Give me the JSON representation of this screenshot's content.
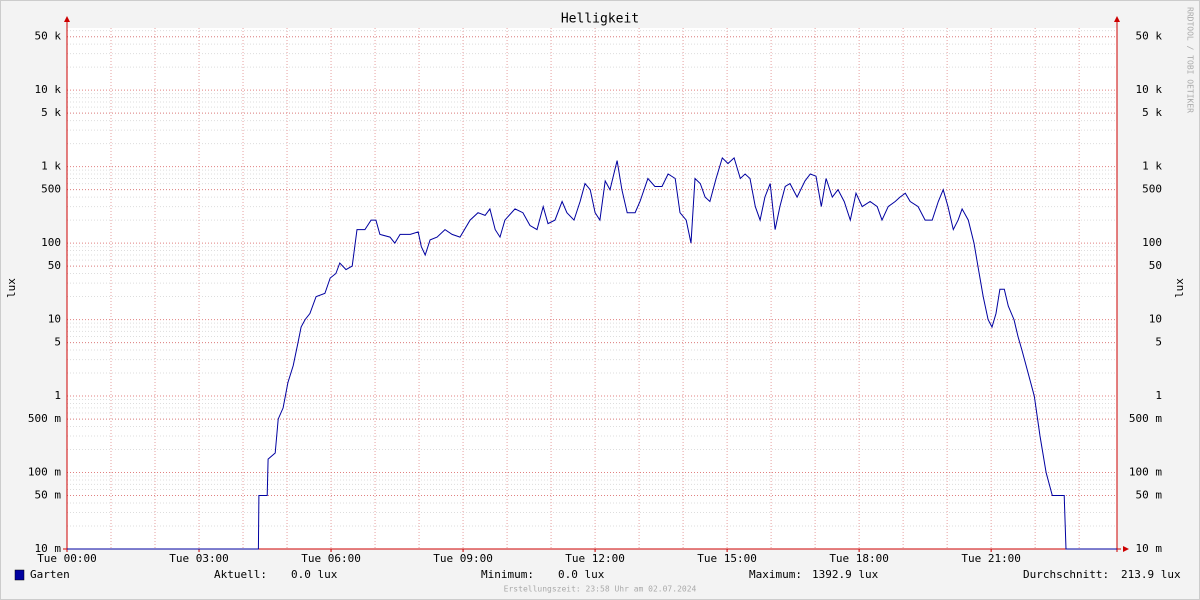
{
  "chart_data": {
    "type": "line",
    "title": "Helligkeit",
    "y_label": "lux",
    "log_y": true,
    "grid": true,
    "xlim": [
      0,
      23.86
    ],
    "ylim": [
      0.01,
      65000
    ],
    "xticks": [
      {
        "value": 0,
        "label": "Tue 00:00"
      },
      {
        "value": 3,
        "label": "Tue 03:00"
      },
      {
        "value": 6,
        "label": "Tue 06:00"
      },
      {
        "value": 9,
        "label": "Tue 09:00"
      },
      {
        "value": 12,
        "label": "Tue 12:00"
      },
      {
        "value": 15,
        "label": "Tue 15:00"
      },
      {
        "value": 18,
        "label": "Tue 18:00"
      },
      {
        "value": 21,
        "label": "Tue 21:00"
      }
    ],
    "yticks": [
      {
        "value": 0.01,
        "label": "10 m"
      },
      {
        "value": 0.05,
        "label": "50 m"
      },
      {
        "value": 0.1,
        "label": "100 m"
      },
      {
        "value": 0.5,
        "label": "500 m"
      },
      1,
      5,
      10,
      50,
      100,
      500,
      {
        "value": 1000,
        "label": "1 k"
      },
      {
        "value": 5000,
        "label": "5 k"
      },
      {
        "value": 10000,
        "label": "10 k"
      },
      {
        "value": 50000,
        "label": "50 k"
      }
    ],
    "x": [
      0,
      4.35,
      4.36,
      4.55,
      4.57,
      4.73,
      4.8,
      4.91,
      5.02,
      5.14,
      5.25,
      5.32,
      5.41,
      5.52,
      5.66,
      5.86,
      5.98,
      6.11,
      6.2,
      6.34,
      6.48,
      6.59,
      6.77,
      6.91,
      7.02,
      7.11,
      7.34,
      7.45,
      7.57,
      7.8,
      7.98,
      8.05,
      8.14,
      8.25,
      8.41,
      8.59,
      8.75,
      8.93,
      9.16,
      9.34,
      9.5,
      9.61,
      9.73,
      9.84,
      9.95,
      10.18,
      10.36,
      10.52,
      10.68,
      10.82,
      10.93,
      11.09,
      11.25,
      11.36,
      11.52,
      11.66,
      11.77,
      11.89,
      12,
      12.11,
      12.23,
      12.34,
      12.5,
      12.61,
      12.73,
      12.91,
      13.02,
      13.2,
      13.36,
      13.52,
      13.66,
      13.82,
      13.93,
      14.07,
      14.18,
      14.27,
      14.39,
      14.5,
      14.61,
      14.75,
      14.89,
      15.02,
      15.16,
      15.3,
      15.41,
      15.52,
      15.64,
      15.75,
      15.86,
      15.98,
      16.09,
      16.2,
      16.32,
      16.43,
      16.59,
      16.77,
      16.89,
      17.02,
      17.14,
      17.25,
      17.39,
      17.52,
      17.66,
      17.8,
      17.93,
      18.07,
      18.25,
      18.41,
      18.52,
      18.66,
      18.82,
      18.93,
      19.05,
      19.16,
      19.34,
      19.5,
      19.66,
      19.8,
      19.91,
      20.02,
      20.14,
      20.25,
      20.34,
      20.48,
      20.61,
      20.7,
      20.82,
      20.93,
      21.02,
      21.11,
      21.2,
      21.3,
      21.39,
      21.52,
      21.61,
      21.7,
      21.84,
      21.98,
      22.11,
      22.25,
      22.39,
      22.57,
      22.66,
      22.7,
      23.86
    ],
    "series": [
      {
        "name": "Garten",
        "color": "#0000a0",
        "values": [
          0,
          0,
          0.05,
          0.05,
          0.15,
          0.18,
          0.5,
          0.7,
          1.5,
          2.5,
          5,
          8,
          10,
          12,
          20,
          22,
          35,
          40,
          55,
          45,
          50,
          150,
          150,
          200,
          200,
          130,
          120,
          100,
          130,
          130,
          140,
          90,
          70,
          110,
          120,
          150,
          130,
          120,
          200,
          250,
          230,
          280,
          150,
          120,
          200,
          280,
          250,
          170,
          150,
          300,
          180,
          200,
          350,
          250,
          200,
          350,
          600,
          500,
          250,
          200,
          650,
          500,
          1200,
          500,
          250,
          250,
          350,
          700,
          550,
          550,
          800,
          700,
          250,
          200,
          100,
          700,
          600,
          400,
          350,
          700,
          1300,
          1100,
          1300,
          700,
          800,
          700,
          300,
          200,
          400,
          600,
          150,
          300,
          550,
          600,
          400,
          650,
          800,
          750,
          300,
          700,
          400,
          500,
          350,
          200,
          450,
          300,
          350,
          300,
          200,
          300,
          350,
          400,
          450,
          350,
          300,
          200,
          200,
          350,
          500,
          300,
          150,
          200,
          280,
          200,
          100,
          50,
          20,
          10,
          8,
          12,
          25,
          25,
          15,
          10,
          6,
          4,
          2,
          1,
          0.3,
          0.1,
          0.05,
          0.05,
          0.05,
          0,
          0
        ]
      }
    ],
    "stats": [
      {
        "label": "Aktuell:",
        "value": "0.0 lux"
      },
      {
        "label": "Minimum:",
        "value": "0.0 lux"
      },
      {
        "label": "Maximum:",
        "value": "1392.9 lux"
      },
      {
        "label": "Durchschnitt:",
        "value": "213.9 lux"
      }
    ],
    "footer": "Erstellungszeit: 23:58 Uhr am 02.07.2024",
    "watermark": "RRDTOOL / TOBI OETIKER"
  }
}
